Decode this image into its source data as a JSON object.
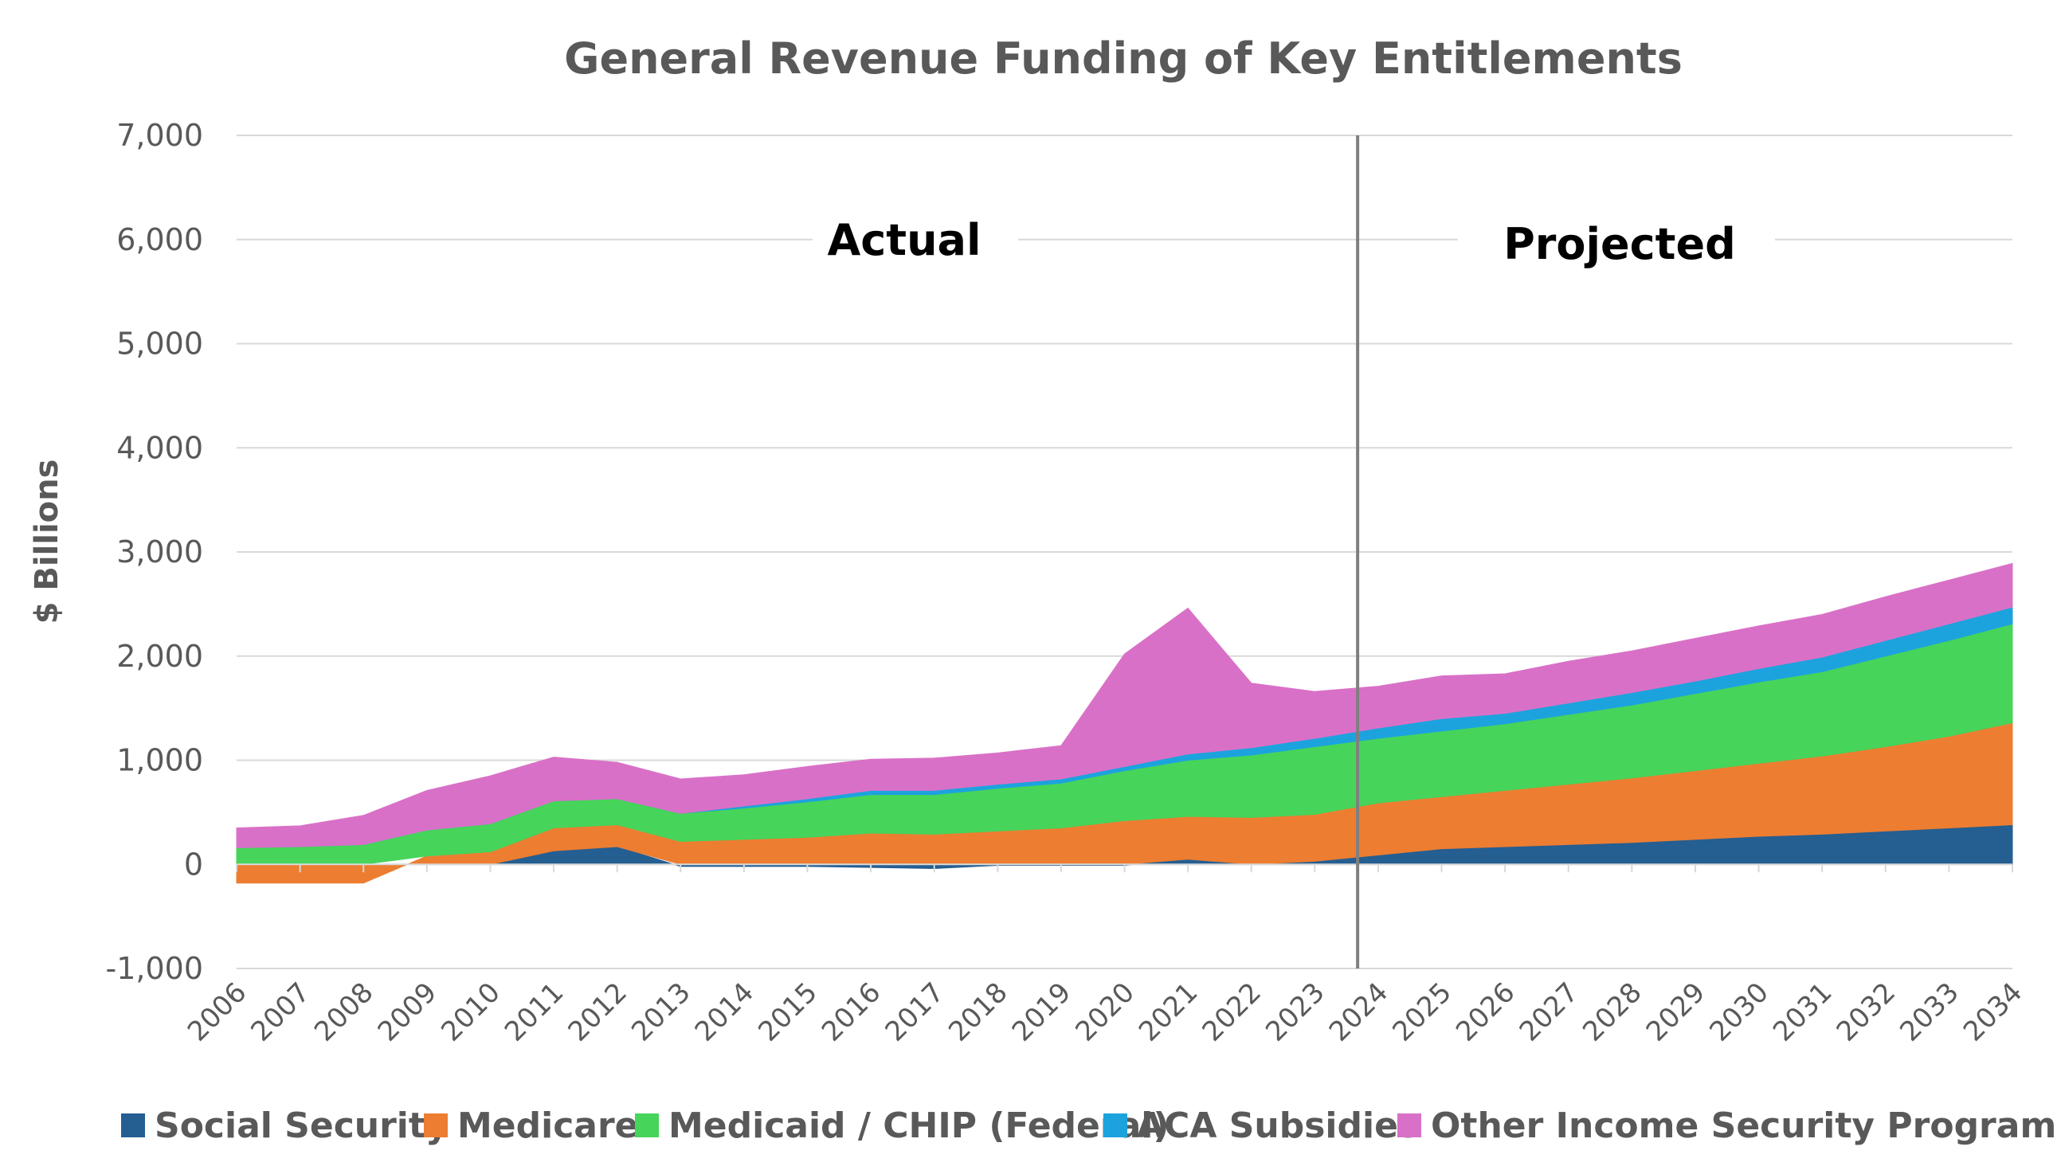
{
  "chart_data": {
    "type": "area",
    "stacked": true,
    "title": "General Revenue Funding of Key Entitlements",
    "ylabel": "$ Billions",
    "xlabel": "",
    "ylim": [
      -1000,
      7000
    ],
    "yticks": [
      -1000,
      0,
      1000,
      2000,
      3000,
      4000,
      5000,
      6000,
      7000
    ],
    "ytick_labels": [
      "-1,000",
      "0",
      "1,000",
      "2,000",
      "3,000",
      "4,000",
      "5,000",
      "6,000",
      "7,000"
    ],
    "grid": "horizontal",
    "legend_position": "bottom",
    "x": [
      "2006",
      "2007",
      "2008",
      "2009",
      "2010",
      "2011",
      "2012",
      "2013",
      "2014",
      "2015",
      "2016",
      "2017",
      "2018",
      "2019",
      "2020",
      "2021",
      "2022",
      "2023",
      "2024",
      "2025",
      "2026",
      "2027",
      "2028",
      "2029",
      "2030",
      "2031",
      "2032",
      "2033",
      "2034"
    ],
    "divider": {
      "at": "2024",
      "left_label": "Actual",
      "right_label": "Projected"
    },
    "series": [
      {
        "name": "Social Security",
        "color": "#255E91",
        "values": [
          0,
          0,
          0,
          0,
          0,
          130,
          170,
          -20,
          -20,
          -20,
          -30,
          -40,
          -10,
          -10,
          -10,
          50,
          0,
          30,
          90,
          150,
          170,
          190,
          210,
          240,
          270,
          290,
          320,
          350,
          380
        ]
      },
      {
        "name": "Medicare",
        "color": "#ED7D31",
        "values": [
          -180,
          -180,
          -180,
          80,
          120,
          220,
          210,
          220,
          240,
          260,
          300,
          290,
          320,
          350,
          420,
          410,
          450,
          450,
          500,
          500,
          540,
          580,
          620,
          660,
          700,
          750,
          810,
          880,
          980
        ]
      },
      {
        "name": "Medicaid / CHIP (Federal)",
        "color": "#47D45A",
        "values": [
          160,
          170,
          190,
          250,
          270,
          260,
          250,
          270,
          300,
          340,
          370,
          380,
          410,
          430,
          480,
          540,
          600,
          650,
          620,
          630,
          640,
          670,
          700,
          740,
          780,
          810,
          870,
          920,
          950
        ]
      },
      {
        "name": "ACA Subsidies",
        "color": "#1CA3DE",
        "values": [
          0,
          0,
          0,
          0,
          0,
          0,
          0,
          0,
          20,
          30,
          40,
          40,
          40,
          40,
          40,
          60,
          70,
          80,
          100,
          120,
          100,
          110,
          120,
          120,
          130,
          140,
          150,
          160,
          160
        ]
      },
      {
        "name": "Other Income Security Programs",
        "color": "#D970C7",
        "values": [
          190,
          200,
          280,
          380,
          460,
          420,
          350,
          330,
          300,
          310,
          300,
          310,
          300,
          320,
          1080,
          1400,
          620,
          450,
          400,
          410,
          380,
          400,
          400,
          410,
          410,
          410,
          420,
          420,
          420
        ]
      }
    ]
  }
}
